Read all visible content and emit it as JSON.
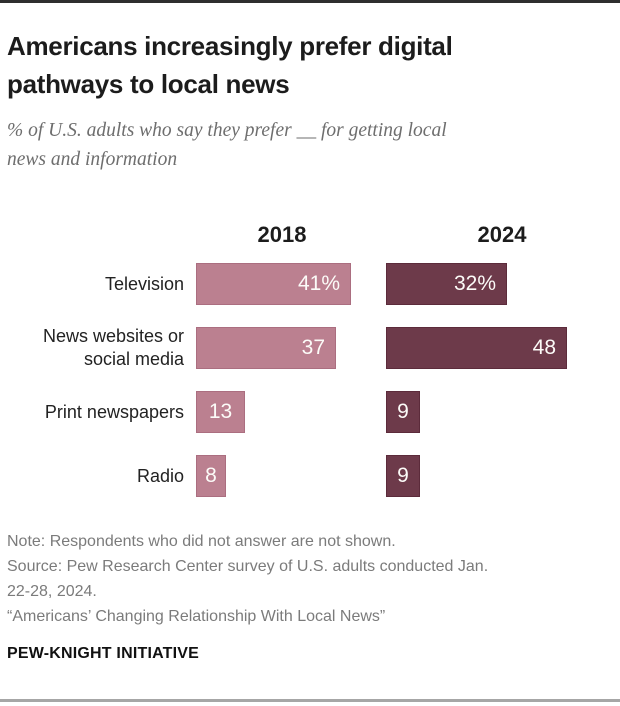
{
  "header": {
    "title_lines": [
      "Americans increasingly prefer digital",
      "pathways to local news"
    ],
    "subtitle_lines": [
      "% of U.S. adults who say they prefer __ for getting local",
      "news and information"
    ]
  },
  "chart_data": {
    "type": "bar",
    "orientation": "horizontal",
    "title": "Americans increasingly prefer digital pathways to local news",
    "subtitle": "% of U.S. adults who say they prefer __ for getting local news and information",
    "categories": [
      "Television",
      "News websites or social media",
      "Print newspapers",
      "Radio"
    ],
    "series": [
      {
        "name": "2018",
        "color": "#bb8090",
        "border_color": "#ab6e80",
        "values": [
          41,
          37,
          13,
          8
        ],
        "display_values": [
          "41%",
          "37",
          "13",
          "8"
        ]
      },
      {
        "name": "2024",
        "color": "#6d3a4a",
        "border_color": "#5c2b3b",
        "values": [
          32,
          48,
          9,
          9
        ],
        "display_values": [
          "32%",
          "48",
          "9",
          "9"
        ]
      }
    ],
    "xlim": [
      0,
      50
    ],
    "value_label_position": "inside-end",
    "axes_shown": false,
    "grid": false,
    "legend_position": "column-headers"
  },
  "footer": {
    "note_lines": [
      "Note: Respondents who did not answer are not shown.",
      "Source: Pew Research Center survey of U.S. adults conducted Jan.",
      "22-28, 2024.",
      "“Americans’ Changing Relationship With Local News”"
    ],
    "brand": "PEW-KNIGHT INITIATIVE"
  },
  "colors": {
    "bar_2018": "#bb8090",
    "bar_2024": "#6d3a4a",
    "value_text": "#fcfbf8",
    "top_rule": "#2e2e2e",
    "bottom_rule": "#a6a6a6"
  }
}
